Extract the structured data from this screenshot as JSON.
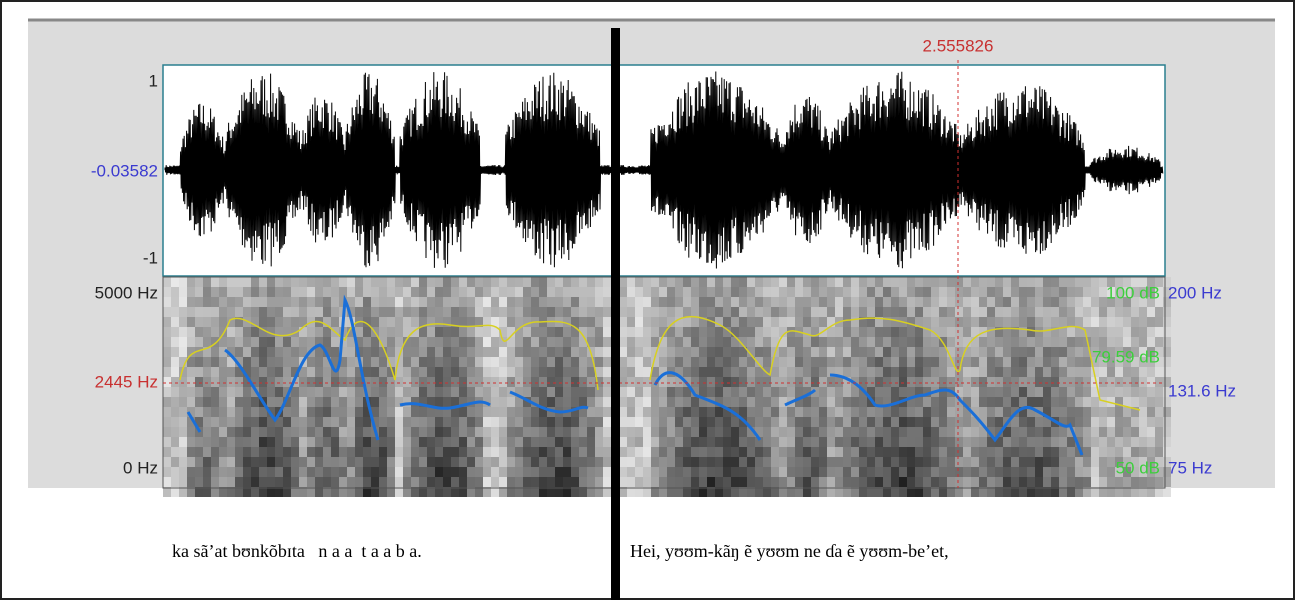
{
  "cursor_time": "2.555826",
  "waveform": {
    "labels": [
      "1",
      "-0.03582",
      "-1"
    ]
  },
  "spectrogram": {
    "left_labels": [
      "5000 Hz",
      "2445 Hz",
      "0 Hz"
    ],
    "intensity_labels": [
      "100 dB",
      "79.59 dB",
      "50 dB"
    ],
    "pitch_labels": [
      "200 Hz",
      "131.6 Hz",
      "75 Hz"
    ]
  },
  "transcript": [
    "ka sã’at bʊnkõbɪta   n a a  t a a b a.",
    "Hei, yʊʊm-kãŋ ẽ yʊʊm ne ɗa ẽ yʊʊm-be’et,"
  ]
}
